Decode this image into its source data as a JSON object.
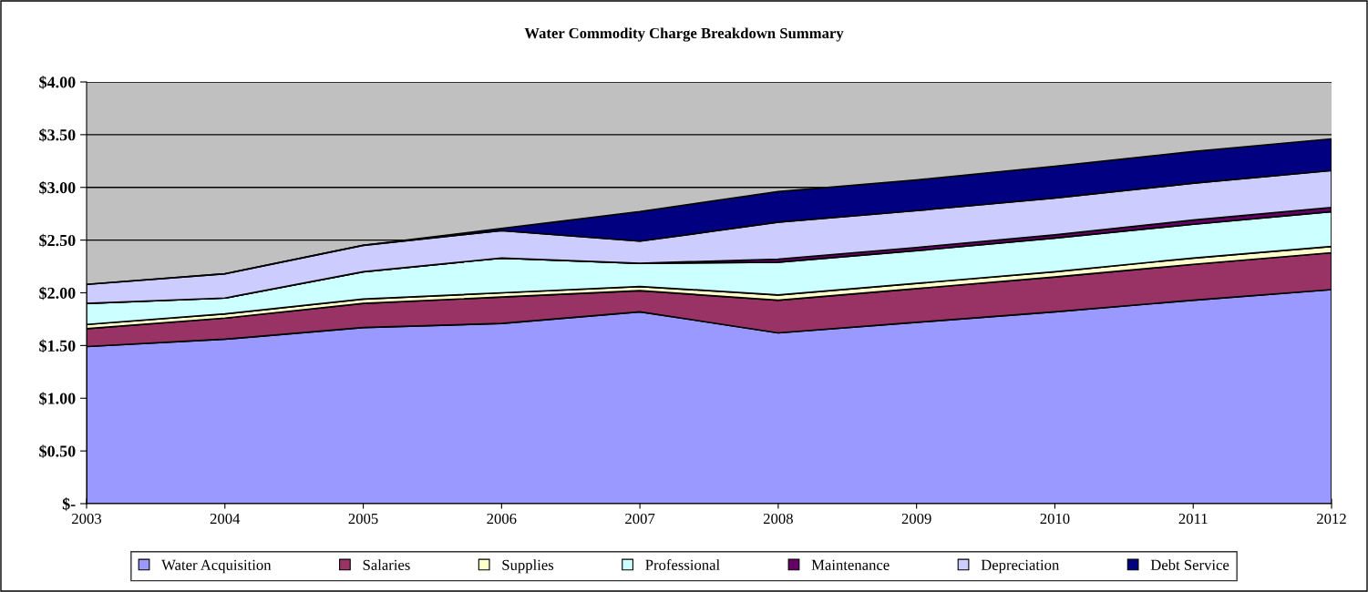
{
  "chart_data": {
    "type": "area",
    "stacked": true,
    "title": "Water Commodity Charge Breakdown Summary",
    "x": [
      2003,
      2004,
      2005,
      2006,
      2007,
      2008,
      2009,
      2010,
      2011,
      2012
    ],
    "xlim": [
      2003,
      2012
    ],
    "xticks": [
      2003,
      2004,
      2005,
      2006,
      2007,
      2008,
      2009,
      2010,
      2011,
      2012
    ],
    "ylim": [
      0,
      4
    ],
    "yticks": [
      {
        "value": 0,
        "label": "$-"
      },
      {
        "value": 0.5,
        "label": "$0.50"
      },
      {
        "value": 1,
        "label": "$1.00"
      },
      {
        "value": 1.5,
        "label": "$1.50"
      },
      {
        "value": 2,
        "label": "$2.00"
      },
      {
        "value": 2.5,
        "label": "$2.50"
      },
      {
        "value": 3,
        "label": "$3.00"
      },
      {
        "value": 3.5,
        "label": "$3.50"
      },
      {
        "value": 4,
        "label": "$4.00"
      }
    ],
    "grid": "y",
    "legend": "bottom",
    "series": [
      {
        "name": "Water Acquisition",
        "color": "#9999ff",
        "values": [
          1.49,
          1.56,
          1.67,
          1.71,
          1.82,
          1.62,
          1.72,
          1.82,
          1.93,
          2.03
        ]
      },
      {
        "name": "Salaries",
        "color": "#993366",
        "values": [
          0.17,
          0.2,
          0.23,
          0.25,
          0.2,
          0.31,
          0.32,
          0.33,
          0.34,
          0.35
        ]
      },
      {
        "name": "Supplies",
        "color": "#ffffcc",
        "values": [
          0.04,
          0.04,
          0.04,
          0.04,
          0.04,
          0.05,
          0.05,
          0.05,
          0.06,
          0.06
        ]
      },
      {
        "name": "Professional",
        "color": "#ccffff",
        "values": [
          0.2,
          0.15,
          0.26,
          0.33,
          0.22,
          0.31,
          0.31,
          0.32,
          0.32,
          0.33
        ]
      },
      {
        "name": "Maintenance",
        "color": "#660066",
        "values": [
          0.0,
          0.0,
          0.0,
          0.0,
          0.0,
          0.03,
          0.03,
          0.03,
          0.04,
          0.04
        ]
      },
      {
        "name": "Depreciation",
        "color": "#ccccff",
        "values": [
          0.18,
          0.23,
          0.25,
          0.26,
          0.21,
          0.35,
          0.35,
          0.35,
          0.35,
          0.35
        ]
      },
      {
        "name": "Debt Service",
        "color": "#000080",
        "values": [
          0.0,
          0.0,
          0.0,
          0.02,
          0.28,
          0.29,
          0.29,
          0.3,
          0.3,
          0.3
        ]
      }
    ]
  }
}
